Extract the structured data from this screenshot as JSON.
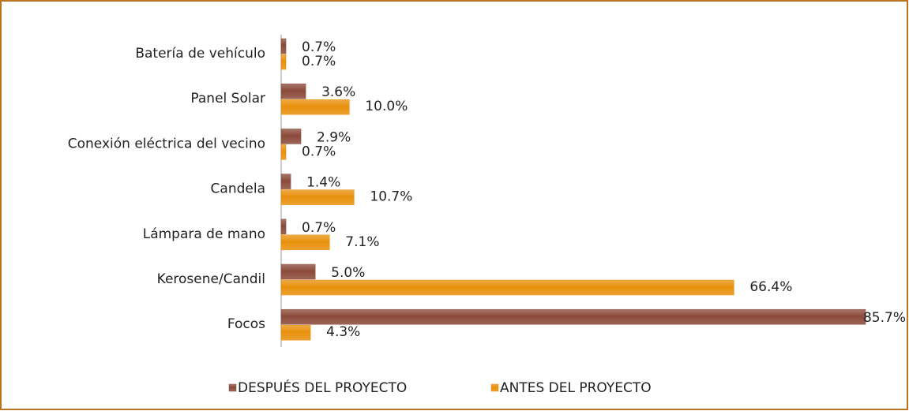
{
  "chart_data": {
    "type": "bar",
    "orientation": "horizontal",
    "categories": [
      "Batería de vehículo",
      "Panel Solar",
      "Conexión eléctrica del vecino",
      "Candela",
      "Lámpara de mano",
      "Kerosene/Candil",
      "Focos"
    ],
    "series": [
      {
        "name": "DESPUÉS DEL PROYECTO",
        "color": "#8b4a3a",
        "values": [
          0.7,
          3.6,
          2.9,
          1.4,
          0.7,
          5.0,
          85.7
        ],
        "value_labels": [
          "0.7%",
          "3.6%",
          "2.9%",
          "1.4%",
          "0.7%",
          "5.0%",
          "85.7%"
        ]
      },
      {
        "name": "ANTES DEL PROYECTO",
        "color": "#e8900c",
        "values": [
          0.7,
          10.0,
          0.7,
          10.7,
          7.1,
          66.4,
          4.3
        ],
        "value_labels": [
          "0.7%",
          "10.0%",
          "0.7%",
          "10.7%",
          "7.1%",
          "66.4%",
          "4.3%"
        ]
      }
    ],
    "legend": "bottom"
  }
}
